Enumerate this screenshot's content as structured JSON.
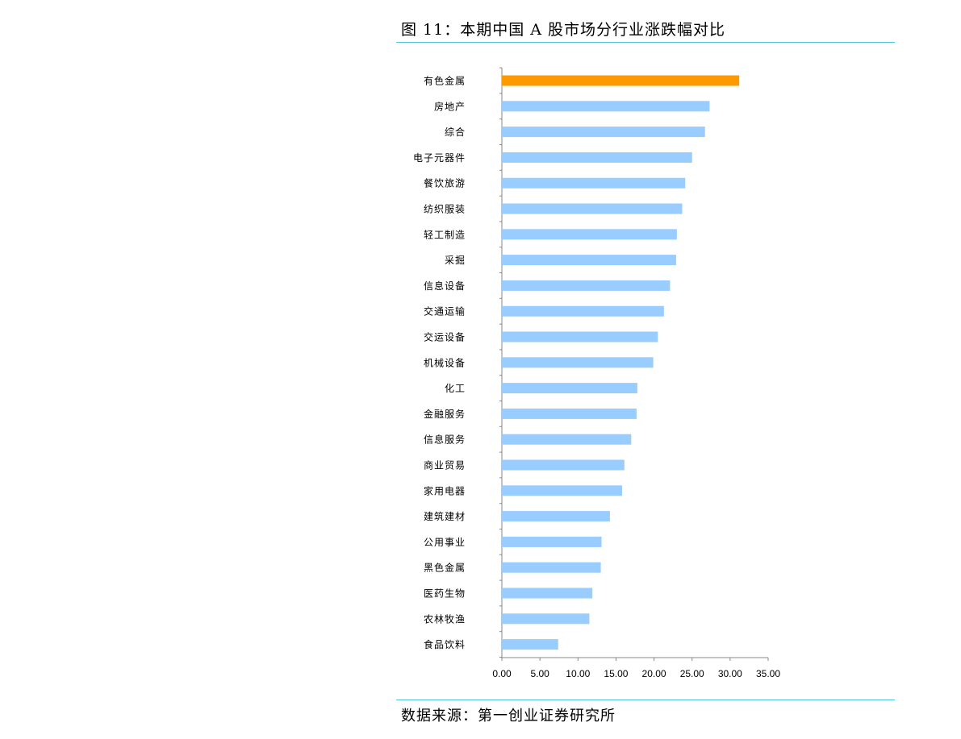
{
  "figure": {
    "title": "图 11：本期中国 A 股市场分行业涨跌幅对比",
    "source": "数据来源：第一创业证券研究所"
  },
  "colors": {
    "highlight": "#ff9900",
    "bar": "#99ccff",
    "rule": "#4fc3dc",
    "axis": "#888888"
  },
  "chart_data": {
    "type": "bar",
    "orientation": "horizontal",
    "categories": [
      "有色金属",
      "房地产",
      "综合",
      "电子元器件",
      "餐饮旅游",
      "纺织服装",
      "轻工制造",
      "采掘",
      "信息设备",
      "交通运输",
      "交运设备",
      "机械设备",
      "化工",
      "金融服务",
      "信息服务",
      "商业贸易",
      "家用电器",
      "建筑建材",
      "公用事业",
      "黑色金属",
      "医药生物",
      "农林牧渔",
      "食品饮料"
    ],
    "values": [
      31.2,
      27.3,
      26.7,
      25.0,
      24.1,
      23.7,
      23.0,
      22.9,
      22.1,
      21.3,
      20.5,
      19.9,
      17.8,
      17.7,
      17.0,
      16.1,
      15.8,
      14.2,
      13.1,
      13.0,
      11.9,
      11.5,
      7.4
    ],
    "highlight_index": 0,
    "xlim": [
      0,
      35
    ],
    "xticks": [
      "0.00",
      "5.00",
      "10.00",
      "15.00",
      "20.00",
      "25.00",
      "30.00",
      "35.00"
    ],
    "grid": false,
    "legend": "none"
  }
}
